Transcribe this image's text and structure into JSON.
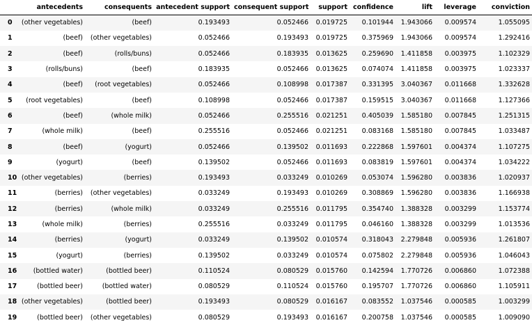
{
  "table": {
    "columns": [
      "",
      "antecedents",
      "consequents",
      "antecedent support",
      "consequent support",
      "support",
      "confidence",
      "lift",
      "leverage",
      "conviction"
    ],
    "rows": [
      [
        "0",
        "(other vegetables)",
        "(beef)",
        "0.193493",
        "0.052466",
        "0.019725",
        "0.101944",
        "1.943066",
        "0.009574",
        "1.055095"
      ],
      [
        "1",
        "(beef)",
        "(other vegetables)",
        "0.052466",
        "0.193493",
        "0.019725",
        "0.375969",
        "1.943066",
        "0.009574",
        "1.292416"
      ],
      [
        "2",
        "(beef)",
        "(rolls/buns)",
        "0.052466",
        "0.183935",
        "0.013625",
        "0.259690",
        "1.411858",
        "0.003975",
        "1.102329"
      ],
      [
        "3",
        "(rolls/buns)",
        "(beef)",
        "0.183935",
        "0.052466",
        "0.013625",
        "0.074074",
        "1.411858",
        "0.003975",
        "1.023337"
      ],
      [
        "4",
        "(beef)",
        "(root vegetables)",
        "0.052466",
        "0.108998",
        "0.017387",
        "0.331395",
        "3.040367",
        "0.011668",
        "1.332628"
      ],
      [
        "5",
        "(root vegetables)",
        "(beef)",
        "0.108998",
        "0.052466",
        "0.017387",
        "0.159515",
        "3.040367",
        "0.011668",
        "1.127366"
      ],
      [
        "6",
        "(beef)",
        "(whole milk)",
        "0.052466",
        "0.255516",
        "0.021251",
        "0.405039",
        "1.585180",
        "0.007845",
        "1.251315"
      ],
      [
        "7",
        "(whole milk)",
        "(beef)",
        "0.255516",
        "0.052466",
        "0.021251",
        "0.083168",
        "1.585180",
        "0.007845",
        "1.033487"
      ],
      [
        "8",
        "(beef)",
        "(yogurt)",
        "0.052466",
        "0.139502",
        "0.011693",
        "0.222868",
        "1.597601",
        "0.004374",
        "1.107275"
      ],
      [
        "9",
        "(yogurt)",
        "(beef)",
        "0.139502",
        "0.052466",
        "0.011693",
        "0.083819",
        "1.597601",
        "0.004374",
        "1.034222"
      ],
      [
        "10",
        "(other vegetables)",
        "(berries)",
        "0.193493",
        "0.033249",
        "0.010269",
        "0.053074",
        "1.596280",
        "0.003836",
        "1.020937"
      ],
      [
        "11",
        "(berries)",
        "(other vegetables)",
        "0.033249",
        "0.193493",
        "0.010269",
        "0.308869",
        "1.596280",
        "0.003836",
        "1.166938"
      ],
      [
        "12",
        "(berries)",
        "(whole milk)",
        "0.033249",
        "0.255516",
        "0.011795",
        "0.354740",
        "1.388328",
        "0.003299",
        "1.153774"
      ],
      [
        "13",
        "(whole milk)",
        "(berries)",
        "0.255516",
        "0.033249",
        "0.011795",
        "0.046160",
        "1.388328",
        "0.003299",
        "1.013536"
      ],
      [
        "14",
        "(berries)",
        "(yogurt)",
        "0.033249",
        "0.139502",
        "0.010574",
        "0.318043",
        "2.279848",
        "0.005936",
        "1.261807"
      ],
      [
        "15",
        "(yogurt)",
        "(berries)",
        "0.139502",
        "0.033249",
        "0.010574",
        "0.075802",
        "2.279848",
        "0.005936",
        "1.046043"
      ],
      [
        "16",
        "(bottled water)",
        "(bottled beer)",
        "0.110524",
        "0.080529",
        "0.015760",
        "0.142594",
        "1.770726",
        "0.006860",
        "1.072388"
      ],
      [
        "17",
        "(bottled beer)",
        "(bottled water)",
        "0.080529",
        "0.110524",
        "0.015760",
        "0.195707",
        "1.770726",
        "0.006860",
        "1.105911"
      ],
      [
        "18",
        "(other vegetables)",
        "(bottled beer)",
        "0.193493",
        "0.080529",
        "0.016167",
        "0.083552",
        "1.037546",
        "0.000585",
        "1.003299"
      ],
      [
        "19",
        "(bottled beer)",
        "(other vegetables)",
        "0.080529",
        "0.193493",
        "0.016167",
        "0.200758",
        "1.037546",
        "0.000585",
        "1.009090"
      ]
    ]
  }
}
